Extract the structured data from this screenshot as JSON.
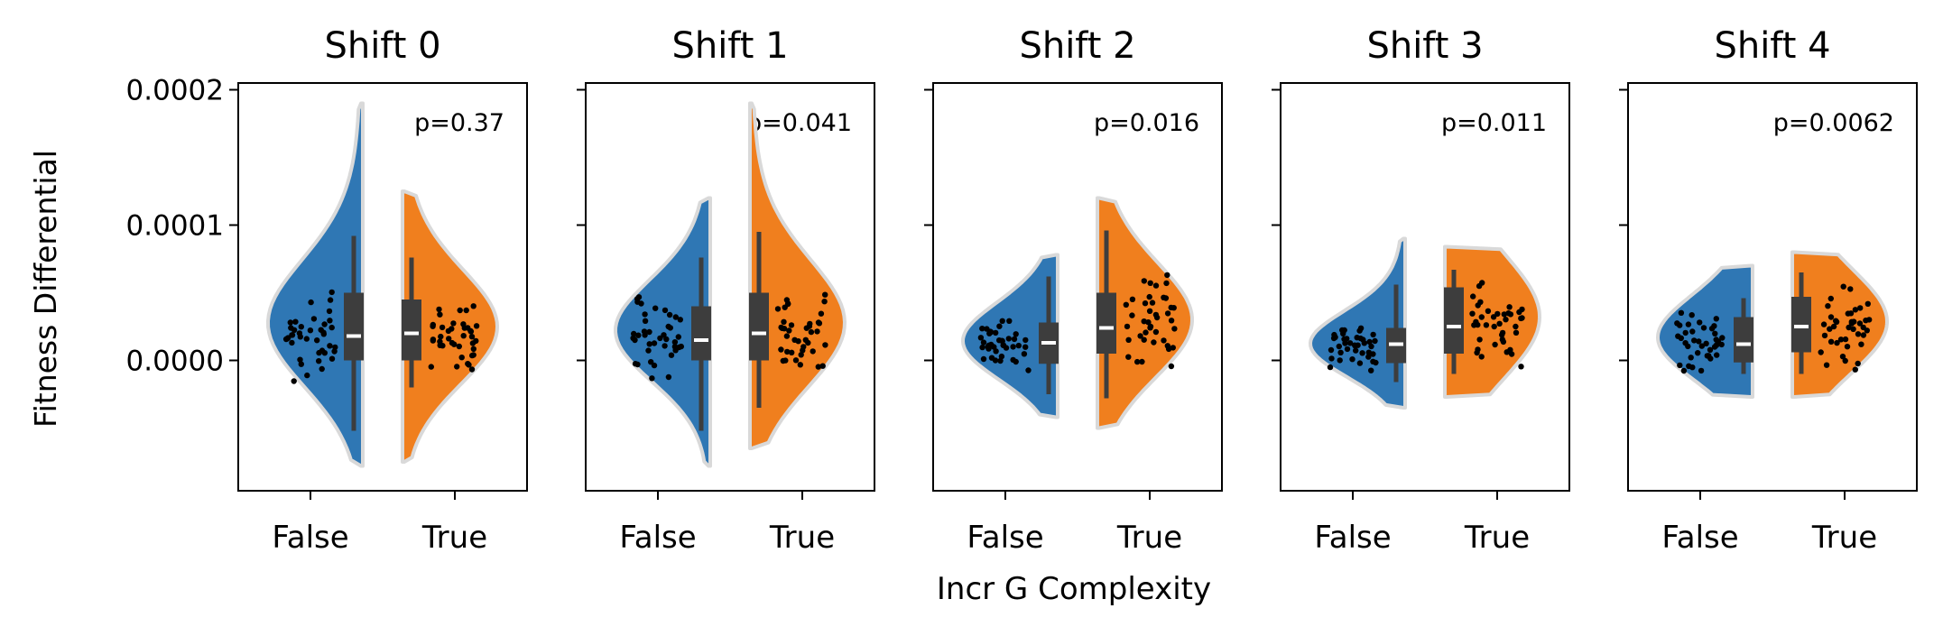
{
  "figure": {
    "ylabel": "Fitness Differential",
    "xlabel": "Incr G Complexity",
    "yticks": [
      {
        "value": 0.0002,
        "label": "0.0002"
      },
      {
        "value": 0.0001,
        "label": "0.0001"
      },
      {
        "value": 0.0,
        "label": "0.0000"
      }
    ],
    "ylim": [
      -9.55e-05,
      0.0002
    ],
    "categories": [
      "False",
      "True"
    ],
    "colors": {
      "False": "#2f77b4",
      "True": "#f07f1e",
      "box": "#3d3d3d",
      "median": "#ffffff",
      "outline": "#d9d9d9",
      "points": "#000000"
    }
  },
  "chart_data": [
    {
      "type": "violin",
      "title": "Shift 0",
      "annotation": "p=0.37",
      "categories": [
        "False",
        "True"
      ],
      "series": [
        {
          "category": "False",
          "min": -7.8e-05,
          "max": 0.00019,
          "q1": 0.0,
          "median": 1.8e-05,
          "q3": 5e-05,
          "whisker_low": -5.2e-05,
          "whisker_high": 9.2e-05
        },
        {
          "category": "True",
          "min": -7.5e-05,
          "max": 0.000125,
          "q1": 0.0,
          "median": 2e-05,
          "q3": 4.5e-05,
          "whisker_low": -2e-05,
          "whisker_high": 7.6e-05
        }
      ]
    },
    {
      "type": "violin",
      "title": "Shift 1",
      "annotation": "p=0.041",
      "categories": [
        "False",
        "True"
      ],
      "series": [
        {
          "category": "False",
          "min": -7.8e-05,
          "max": 0.00012,
          "q1": 0.0,
          "median": 1.5e-05,
          "q3": 4e-05,
          "whisker_low": -5.2e-05,
          "whisker_high": 7.6e-05
        },
        {
          "category": "True",
          "min": -6.5e-05,
          "max": 0.00019,
          "q1": 0.0,
          "median": 2e-05,
          "q3": 5e-05,
          "whisker_low": -3.5e-05,
          "whisker_high": 9.5e-05
        }
      ]
    },
    {
      "type": "violin",
      "title": "Shift 2",
      "annotation": "p=0.016",
      "categories": [
        "False",
        "True"
      ],
      "series": [
        {
          "category": "False",
          "min": -4.2e-05,
          "max": 7.8e-05,
          "q1": -2.5e-06,
          "median": 1.3e-05,
          "q3": 2.8e-05,
          "whisker_low": -2.5e-05,
          "whisker_high": 6.2e-05
        },
        {
          "category": "True",
          "min": -5e-05,
          "max": 0.00012,
          "q1": 5e-06,
          "median": 2.4e-05,
          "q3": 5e-05,
          "whisker_low": -2.8e-05,
          "whisker_high": 9.6e-05
        }
      ]
    },
    {
      "type": "violin",
      "title": "Shift 3",
      "annotation": "p=0.011",
      "categories": [
        "False",
        "True"
      ],
      "series": [
        {
          "category": "False",
          "min": -3.5e-05,
          "max": 9e-05,
          "q1": -2e-06,
          "median": 1.2e-05,
          "q3": 2.4e-05,
          "whisker_low": -1.6e-05,
          "whisker_high": 5.6e-05
        },
        {
          "category": "True",
          "min": -2.7e-05,
          "max": 8.4e-05,
          "q1": 5e-06,
          "median": 2.5e-05,
          "q3": 5.4e-05,
          "whisker_low": -1e-05,
          "whisker_high": 6.7e-05
        }
      ]
    },
    {
      "type": "violin",
      "title": "Shift 4",
      "annotation": "p=0.0062",
      "categories": [
        "False",
        "True"
      ],
      "series": [
        {
          "category": "False",
          "min": -2.7e-05,
          "max": 7e-05,
          "q1": -1.5e-06,
          "median": 1.2e-05,
          "q3": 3.2e-05,
          "whisker_low": -1e-05,
          "whisker_high": 4.6e-05
        },
        {
          "category": "True",
          "min": -2.7e-05,
          "max": 8e-05,
          "q1": 6e-06,
          "median": 2.5e-05,
          "q3": 4.7e-05,
          "whisker_low": -1e-05,
          "whisker_high": 6.5e-05
        }
      ]
    }
  ]
}
